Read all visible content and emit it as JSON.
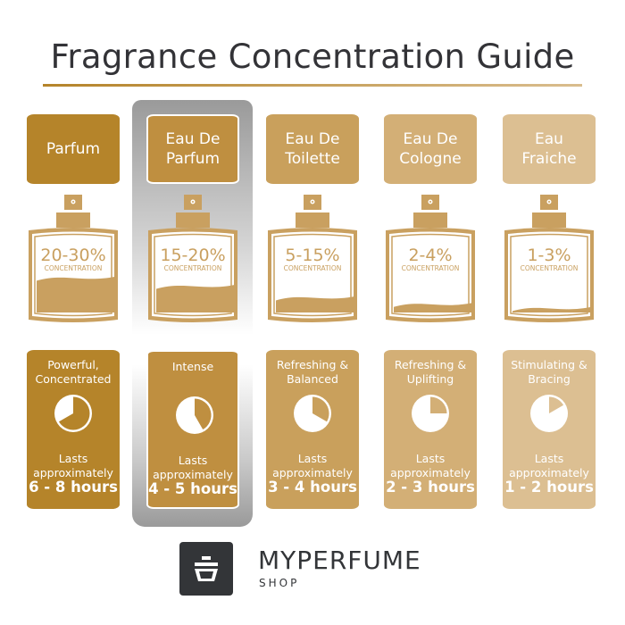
{
  "title": "Fragrance Concentration Guide",
  "columns": [
    {
      "name_line1": "Parfum",
      "name_line2": "",
      "concentration": "20-30%",
      "concentration_label": "CONCENTRATION",
      "fill_level": 0.42,
      "description_line1": "Powerful,",
      "description_line2": "Concentrated",
      "lasts_line1": "Lasts",
      "lasts_line2": "approximately",
      "hours": "6 - 8 hours",
      "pie_fraction": 0.667,
      "color": "#b5842a",
      "highlighted": false
    },
    {
      "name_line1": "Eau De",
      "name_line2": "Parfum",
      "concentration": "15-20%",
      "concentration_label": "CONCENTRATION",
      "fill_level": 0.32,
      "description_line1": "Intense",
      "description_line2": "",
      "lasts_line1": "Lasts",
      "lasts_line2": "approximately",
      "hours": "4 - 5 hours",
      "pie_fraction": 0.417,
      "color": "#bf8f40",
      "highlighted": true
    },
    {
      "name_line1": "Eau De",
      "name_line2": "Toilette",
      "concentration": "5-15%",
      "concentration_label": "CONCENTRATION",
      "fill_level": 0.18,
      "description_line1": "Refreshing &",
      "description_line2": "Balanced",
      "lasts_line1": "Lasts",
      "lasts_line2": "approximately",
      "hours": "3 - 4 hours",
      "pie_fraction": 0.333,
      "color": "#c9a05c",
      "highlighted": false
    },
    {
      "name_line1": "Eau De",
      "name_line2": "Cologne",
      "concentration": "2-4%",
      "concentration_label": "CONCENTRATION",
      "fill_level": 0.1,
      "description_line1": "Refreshing &",
      "description_line2": "Uplifting",
      "lasts_line1": "Lasts",
      "lasts_line2": "approximately",
      "hours": "2 - 3 hours",
      "pie_fraction": 0.25,
      "color": "#d3af76",
      "highlighted": false
    },
    {
      "name_line1": "Eau",
      "name_line2": "Fraiche",
      "concentration": "1-3%",
      "concentration_label": "CONCENTRATION",
      "fill_level": 0.05,
      "description_line1": "Stimulating &",
      "description_line2": "Bracing",
      "lasts_line1": "Lasts",
      "lasts_line2": "approximately",
      "hours": "1 - 2 hours",
      "pie_fraction": 0.167,
      "color": "#dcbf92",
      "highlighted": false
    }
  ],
  "bottle_color": "#c9a060",
  "brand": {
    "name": "MYPERFUME",
    "sub": "SHOP"
  }
}
